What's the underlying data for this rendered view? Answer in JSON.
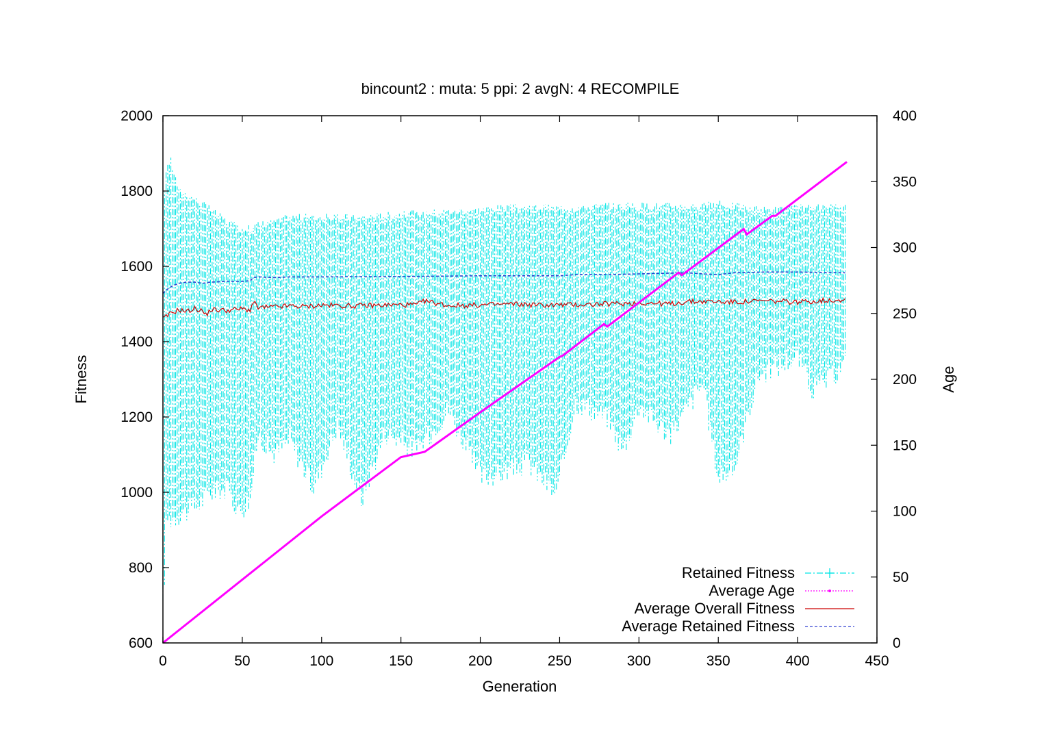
{
  "chart_data": {
    "type": "line",
    "title": "bincount2 : muta: 5  ppi: 2 avgN: 4 RECOMPILE",
    "xlabel": "Generation",
    "ylabel": "Fitness",
    "y2label": "Age",
    "xlim": [
      0,
      450
    ],
    "ylim": [
      600,
      2000
    ],
    "y2lim": [
      0,
      400
    ],
    "xticks": [
      "0",
      "50",
      "100",
      "150",
      "200",
      "250",
      "300",
      "350",
      "400",
      "450"
    ],
    "yticks": [
      "600",
      "800",
      "1000",
      "1200",
      "1400",
      "1600",
      "1800",
      "2000"
    ],
    "y2ticks": [
      "0",
      "50",
      "100",
      "150",
      "200",
      "250",
      "300",
      "350",
      "400"
    ],
    "grid": false,
    "legend_position": "bottom-right",
    "series": [
      {
        "name": "Retained Fitness",
        "style": "vertical range bars (dash-dot)",
        "color": "#00e5e5",
        "axis": "y",
        "x": [
          0,
          1,
          2,
          3,
          5,
          10,
          20,
          30,
          40,
          48,
          55,
          60,
          70,
          80,
          95,
          110,
          125,
          140,
          160,
          180,
          200,
          215,
          230,
          248,
          260,
          280,
          290,
          300,
          320,
          340,
          350,
          360,
          375,
          400,
          410,
          420,
          430
        ],
        "low": [
          690,
          780,
          900,
          930,
          930,
          940,
          960,
          1000,
          1010,
          950,
          980,
          1150,
          1100,
          1140,
          1010,
          1180,
          980,
          1160,
          1110,
          1220,
          1040,
          1050,
          1080,
          990,
          1240,
          1200,
          1110,
          1230,
          1150,
          1290,
          1040,
          1060,
          1310,
          1360,
          1270,
          1300,
          1340
        ],
        "high": [
          1600,
          1800,
          1860,
          1870,
          1880,
          1800,
          1780,
          1750,
          1720,
          1700,
          1700,
          1710,
          1720,
          1730,
          1730,
          1730,
          1730,
          1735,
          1740,
          1745,
          1750,
          1755,
          1755,
          1755,
          1755,
          1760,
          1760,
          1760,
          1760,
          1760,
          1765,
          1760,
          1750,
          1755,
          1755,
          1755,
          1755
        ]
      },
      {
        "name": "Average Age",
        "style": "line with small points",
        "color": "#ff00ff",
        "axis": "y2",
        "x": [
          0,
          50,
          100,
          150,
          165,
          200,
          250,
          252,
          278,
          280,
          325,
          327,
          366,
          368,
          384,
          386,
          431
        ],
        "y": [
          0,
          48,
          96,
          141,
          145,
          175,
          217,
          218,
          242,
          240,
          281,
          279,
          314,
          310,
          324,
          324,
          365
        ]
      },
      {
        "name": "Average Overall Fitness",
        "style": "solid line",
        "color": "#cc0000",
        "axis": "y",
        "x": [
          0,
          5,
          10,
          15,
          20,
          25,
          27,
          30,
          40,
          50,
          55,
          57,
          60,
          70,
          80,
          90,
          100,
          120,
          140,
          160,
          165,
          180,
          200,
          220,
          240,
          260,
          280,
          300,
          320,
          330,
          340,
          360,
          380,
          400,
          420,
          430
        ],
        "y": [
          1460,
          1475,
          1485,
          1480,
          1488,
          1482,
          1470,
          1485,
          1483,
          1487,
          1484,
          1505,
          1490,
          1492,
          1495,
          1493,
          1497,
          1495,
          1497,
          1498,
          1508,
          1496,
          1497,
          1500,
          1497,
          1498,
          1500,
          1503,
          1500,
          1506,
          1507,
          1505,
          1508,
          1505,
          1510,
          1512
        ]
      },
      {
        "name": "Average Retained Fitness",
        "style": "dashed line",
        "color": "#2e3fd0",
        "axis": "y",
        "x": [
          0,
          3,
          6,
          10,
          15,
          20,
          25,
          30,
          40,
          50,
          55,
          57,
          60,
          70,
          80,
          100,
          150,
          200,
          250,
          260,
          280,
          300,
          330,
          340,
          350,
          360,
          380,
          400,
          430
        ],
        "y": [
          1528,
          1540,
          1548,
          1555,
          1558,
          1558,
          1555,
          1558,
          1560,
          1560,
          1562,
          1570,
          1572,
          1570,
          1572,
          1572,
          1573,
          1575,
          1575,
          1578,
          1578,
          1580,
          1583,
          1580,
          1578,
          1583,
          1585,
          1585,
          1583
        ]
      }
    ]
  }
}
